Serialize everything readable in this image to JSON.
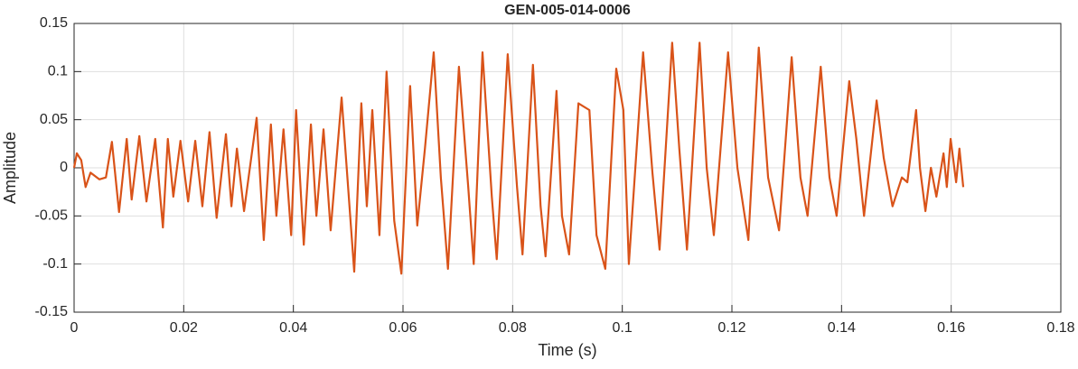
{
  "chart_data": {
    "type": "line",
    "title": "GEN-005-014-0006",
    "xlabel": "Time (s)",
    "ylabel": "Amplitude",
    "x": [
      0,
      0.0005,
      0.0013,
      0.0021,
      0.003,
      0.0046,
      0.0058,
      0.0069,
      0.0082,
      0.0096,
      0.0105,
      0.0119,
      0.0132,
      0.0148,
      0.0162,
      0.0171,
      0.0181,
      0.0194,
      0.0208,
      0.0221,
      0.0234,
      0.0247,
      0.026,
      0.0277,
      0.0287,
      0.0297,
      0.031,
      0.0333,
      0.0346,
      0.0359,
      0.0369,
      0.0382,
      0.0396,
      0.0405,
      0.0419,
      0.0432,
      0.0442,
      0.0455,
      0.0468,
      0.0488,
      0.0511,
      0.0524,
      0.0534,
      0.0544,
      0.0557,
      0.057,
      0.0584,
      0.0597,
      0.0613,
      0.0626,
      0.064,
      0.0656,
      0.0669,
      0.0682,
      0.0702,
      0.0719,
      0.0729,
      0.0745,
      0.0762,
      0.0771,
      0.0791,
      0.0808,
      0.0818,
      0.0837,
      0.0851,
      0.086,
      0.088,
      0.089,
      0.0903,
      0.092,
      0.094,
      0.0953,
      0.0969,
      0.0989,
      0.1002,
      0.1012,
      0.1038,
      0.1055,
      0.1068,
      0.1091,
      0.1104,
      0.1118,
      0.1141,
      0.1154,
      0.1167,
      0.1193,
      0.121,
      0.123,
      0.1249,
      0.1266,
      0.1286,
      0.1309,
      0.1325,
      0.1338,
      0.1362,
      0.1378,
      0.1391,
      0.1414,
      0.1427,
      0.1441,
      0.1464,
      0.1477,
      0.1493,
      0.151,
      0.152,
      0.1536,
      0.1543,
      0.1553,
      0.1563,
      0.1573,
      0.1586,
      0.1592,
      0.1599,
      0.1609,
      0.1615,
      0.1622
    ],
    "values": [
      0,
      0.015,
      0.008,
      -0.02,
      -0.005,
      -0.012,
      -0.01,
      0.027,
      -0.046,
      0.03,
      -0.033,
      0.033,
      -0.035,
      0.03,
      -0.062,
      0.03,
      -0.03,
      0.028,
      -0.035,
      0.028,
      -0.04,
      0.037,
      -0.052,
      0.035,
      -0.04,
      0.02,
      -0.045,
      0.052,
      -0.075,
      0.045,
      -0.05,
      0.04,
      -0.07,
      0.06,
      -0.08,
      0.045,
      -0.05,
      0.04,
      -0.065,
      0.073,
      -0.108,
      0.067,
      -0.04,
      0.06,
      -0.07,
      0.1,
      -0.055,
      -0.11,
      0.085,
      -0.06,
      0.02,
      0.12,
      -0.01,
      -0.105,
      0.105,
      -0.02,
      -0.1,
      0.12,
      -0.03,
      -0.095,
      0.118,
      -0.02,
      -0.09,
      0.107,
      -0.04,
      -0.092,
      0.08,
      -0.05,
      -0.09,
      0.067,
      0.06,
      -0.07,
      -0.105,
      0.103,
      0.06,
      -0.1,
      0.12,
      -0.005,
      -0.085,
      0.13,
      0.02,
      -0.085,
      0.13,
      0,
      -0.07,
      0.12,
      0,
      -0.075,
      0.125,
      -0.01,
      -0.065,
      0.115,
      -0.01,
      -0.05,
      0.105,
      -0.01,
      -0.05,
      0.09,
      0.03,
      -0.05,
      0.07,
      0.01,
      -0.04,
      -0.01,
      -0.015,
      0.06,
      0,
      -0.045,
      0,
      -0.03,
      0.015,
      -0.02,
      0.03,
      -0.015,
      0.02,
      -0.02
    ],
    "color": "#d95319",
    "xlim": [
      0,
      0.18
    ],
    "xticks": [
      0,
      0.02,
      0.04,
      0.06,
      0.08,
      0.1,
      0.12,
      0.14,
      0.16,
      0.18
    ],
    "ylim": [
      -0.15,
      0.15
    ],
    "yticks": [
      -0.15,
      -0.1,
      -0.05,
      0,
      0.05,
      0.1,
      0.15
    ],
    "grid": true
  }
}
